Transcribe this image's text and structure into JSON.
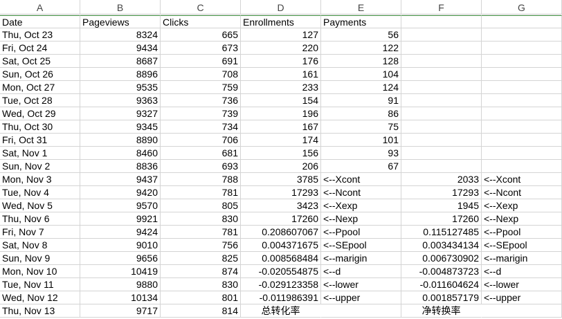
{
  "columns": [
    "A",
    "B",
    "C",
    "D",
    "E",
    "F",
    "G"
  ],
  "header_row": [
    "Date",
    "Pageviews",
    "Clicks",
    "Enrollments",
    "Payments",
    "",
    ""
  ],
  "rows": [
    [
      "Thu, Oct 23",
      "8324",
      "665",
      "127",
      "56",
      "",
      ""
    ],
    [
      "Fri, Oct 24",
      "9434",
      "673",
      "220",
      "122",
      "",
      ""
    ],
    [
      "Sat, Oct 25",
      "8687",
      "691",
      "176",
      "128",
      "",
      ""
    ],
    [
      "Sun, Oct 26",
      "8896",
      "708",
      "161",
      "104",
      "",
      ""
    ],
    [
      "Mon, Oct 27",
      "9535",
      "759",
      "233",
      "124",
      "",
      ""
    ],
    [
      "Tue, Oct 28",
      "9363",
      "736",
      "154",
      "91",
      "",
      ""
    ],
    [
      "Wed, Oct 29",
      "9327",
      "739",
      "196",
      "86",
      "",
      ""
    ],
    [
      "Thu, Oct 30",
      "9345",
      "734",
      "167",
      "75",
      "",
      ""
    ],
    [
      "Fri, Oct 31",
      "8890",
      "706",
      "174",
      "101",
      "",
      ""
    ],
    [
      "Sat, Nov 1",
      "8460",
      "681",
      "156",
      "93",
      "",
      ""
    ],
    [
      "Sun, Nov 2",
      "8836",
      "693",
      "206",
      "67",
      "",
      ""
    ],
    [
      "Mon, Nov 3",
      "9437",
      "788",
      "3785",
      "<--Xcont",
      "2033",
      "<--Xcont"
    ],
    [
      "Tue, Nov 4",
      "9420",
      "781",
      "17293",
      "<--Ncont",
      "17293",
      "<--Ncont"
    ],
    [
      "Wed, Nov 5",
      "9570",
      "805",
      "3423",
      "<--Xexp",
      "1945",
      "<--Xexp"
    ],
    [
      "Thu, Nov 6",
      "9921",
      "830",
      "17260",
      "<--Nexp",
      "17260",
      "<--Nexp"
    ],
    [
      "Fri, Nov 7",
      "9424",
      "781",
      "0.208607067",
      "<--Ppool",
      "0.115127485",
      "<--Ppool"
    ],
    [
      "Sat, Nov 8",
      "9010",
      "756",
      "0.004371675",
      "<--SEpool",
      "0.003434134",
      "<--SEpool"
    ],
    [
      "Sun, Nov 9",
      "9656",
      "825",
      "0.008568484",
      "<--marigin",
      "0.006730902",
      "<--marigin"
    ],
    [
      "Mon, Nov 10",
      "10419",
      "874",
      "-0.020554875",
      "<--d",
      "-0.004873723",
      "<--d"
    ],
    [
      "Tue, Nov 11",
      "9880",
      "830",
      "-0.029123358",
      "<--lower",
      "-0.011604624",
      "<--lower"
    ],
    [
      "Wed, Nov 12",
      "10134",
      "801",
      "-0.011986391",
      "<--upper",
      "0.001857179",
      "<--upper"
    ],
    [
      "Thu, Nov 13",
      "9717",
      "814",
      "总转化率",
      "",
      "净转换率",
      ""
    ]
  ]
}
